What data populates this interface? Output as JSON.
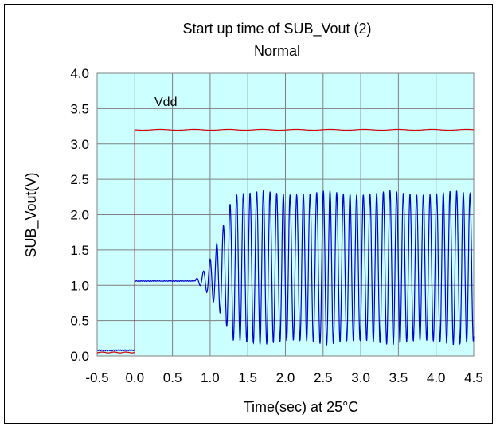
{
  "chart_data": {
    "type": "line",
    "title": "Start up time of SUB_Vout (2)",
    "subtitle": "Normal",
    "xlabel": "Time(sec)  at  25°C",
    "ylabel": "SUB_Vout(V)",
    "xlim": [
      -0.5,
      4.5
    ],
    "ylim": [
      0.0,
      4.0
    ],
    "x_ticks": [
      "-0.5",
      "0.0",
      "0.5",
      "1.0",
      "1.5",
      "2.0",
      "2.5",
      "3.0",
      "3.5",
      "4.0",
      "4.5"
    ],
    "y_ticks": [
      "0.0",
      "0.5",
      "1.0",
      "1.5",
      "2.0",
      "2.5",
      "3.0",
      "3.5",
      "4.0"
    ],
    "grid": true,
    "plot_background": "#ccffff",
    "annotations": [
      {
        "text": "Vdd",
        "x": 0.3,
        "y": 3.55,
        "color": "#ff0000"
      }
    ],
    "series": [
      {
        "name": "Vdd",
        "color": "#cc0000",
        "x": [
          -0.5,
          -0.01,
          0.0,
          0.0,
          4.5
        ],
        "y": [
          0.05,
          0.05,
          0.05,
          3.2,
          3.2
        ]
      },
      {
        "color": "#0000cc",
        "description_points": {
          "pre_start_level": 0.08,
          "step_time": 0.0,
          "plateau_level": 1.06,
          "oscillation_start": 0.8,
          "full_amplitude_time": 1.3,
          "oscillation_max": 2.38,
          "oscillation_min": 0.15,
          "cycles_per_sec": 11.3
        }
      }
    ]
  }
}
